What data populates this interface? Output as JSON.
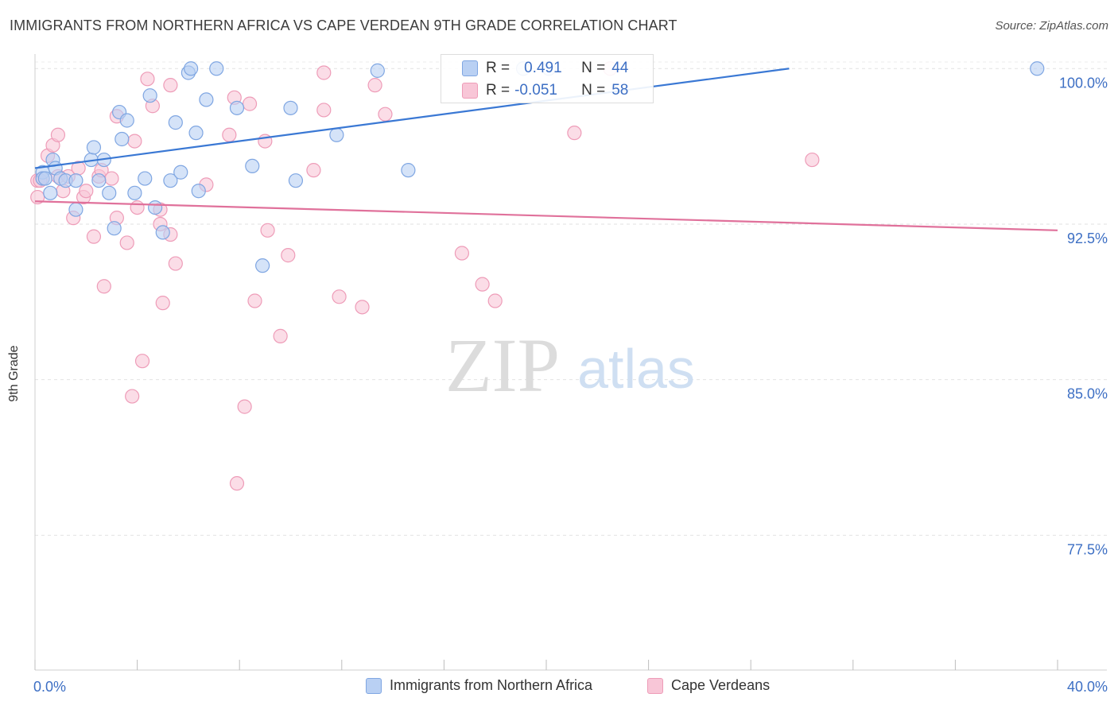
{
  "title": "IMMIGRANTS FROM NORTHERN AFRICA VS CAPE VERDEAN 9TH GRADE CORRELATION CHART",
  "source": "Source: ZipAtlas.com",
  "watermark": {
    "zip": "ZIP",
    "atlas": "atlas"
  },
  "colors": {
    "blue_fill": "#b9d0f3",
    "blue_stroke": "#7fa6e2",
    "blue_line": "#3a78d4",
    "pink_fill": "#f8c6d7",
    "pink_stroke": "#ee9cb8",
    "pink_line": "#e0719b",
    "tick_text": "#3d6fc4"
  },
  "legend": {
    "series1_label": "Immigrants from Northern Africa",
    "series2_label": "Cape Verdeans",
    "r_key": "R =",
    "n_key": "N =",
    "series1_r": "0.491",
    "series1_n": "44",
    "series2_r": "-0.051",
    "series2_n": "58"
  },
  "chart_data": {
    "type": "scatter",
    "title": "IMMIGRANTS FROM NORTHERN AFRICA VS CAPE VERDEAN 9TH GRADE CORRELATION CHART",
    "xlabel": "",
    "ylabel": "9th Grade",
    "xlim": [
      0,
      40
    ],
    "ylim": [
      71.0,
      100.7
    ],
    "x_tick_labels": [
      "0.0%",
      "40.0%"
    ],
    "y_ticks": [
      77.5,
      85.0,
      92.5,
      100.0
    ],
    "y_tick_labels": [
      "77.5%",
      "85.0%",
      "92.5%",
      "100.0%"
    ],
    "grid": true,
    "legend_position": "top-center",
    "series": [
      {
        "name": "Immigrants from Northern Africa",
        "color": "#7fa6e2",
        "r": 0.491,
        "n": 44,
        "trend": {
          "x": [
            0.0,
            29.5
          ],
          "y": [
            95.2,
            100.0
          ]
        },
        "points": [
          [
            0.3,
            95.0
          ],
          [
            0.3,
            94.7
          ],
          [
            0.4,
            94.7
          ],
          [
            0.6,
            94.0
          ],
          [
            0.7,
            95.6
          ],
          [
            0.8,
            95.2
          ],
          [
            1.0,
            94.7
          ],
          [
            1.2,
            94.6
          ],
          [
            1.6,
            93.2
          ],
          [
            1.6,
            94.6
          ],
          [
            2.2,
            95.6
          ],
          [
            2.3,
            96.2
          ],
          [
            2.5,
            94.6
          ],
          [
            2.7,
            95.6
          ],
          [
            2.9,
            94.0
          ],
          [
            3.1,
            92.3
          ],
          [
            3.3,
            97.9
          ],
          [
            3.4,
            96.6
          ],
          [
            3.6,
            97.5
          ],
          [
            3.9,
            94.0
          ],
          [
            4.3,
            94.7
          ],
          [
            4.5,
            98.7
          ],
          [
            4.7,
            93.3
          ],
          [
            5.0,
            92.1
          ],
          [
            5.3,
            94.6
          ],
          [
            5.5,
            97.4
          ],
          [
            5.7,
            95.0
          ],
          [
            6.0,
            99.8
          ],
          [
            6.1,
            100.0
          ],
          [
            6.3,
            96.9
          ],
          [
            6.4,
            94.1
          ],
          [
            6.7,
            98.5
          ],
          [
            7.1,
            100.0
          ],
          [
            7.9,
            98.1
          ],
          [
            8.5,
            95.3
          ],
          [
            8.9,
            90.5
          ],
          [
            10.0,
            98.1
          ],
          [
            10.2,
            94.6
          ],
          [
            11.8,
            96.8
          ],
          [
            13.4,
            99.9
          ],
          [
            14.6,
            95.1
          ],
          [
            19.1,
            100.0
          ],
          [
            20.1,
            100.0
          ],
          [
            39.2,
            100.0
          ]
        ]
      },
      {
        "name": "Cape Verdeans",
        "color": "#ee9cb8",
        "r": -0.051,
        "n": 58,
        "trend": {
          "x": [
            0.0,
            40.0
          ],
          "y": [
            93.6,
            92.2
          ]
        },
        "points": [
          [
            0.1,
            93.8
          ],
          [
            0.1,
            94.6
          ],
          [
            0.3,
            94.7
          ],
          [
            0.5,
            95.8
          ],
          [
            0.7,
            96.3
          ],
          [
            0.9,
            96.8
          ],
          [
            0.9,
            94.8
          ],
          [
            1.1,
            94.1
          ],
          [
            1.3,
            94.8
          ],
          [
            1.5,
            92.8
          ],
          [
            1.7,
            95.2
          ],
          [
            1.9,
            93.8
          ],
          [
            2.0,
            94.1
          ],
          [
            2.3,
            91.9
          ],
          [
            2.5,
            94.8
          ],
          [
            2.6,
            95.1
          ],
          [
            2.7,
            89.5
          ],
          [
            3.0,
            94.7
          ],
          [
            3.2,
            92.8
          ],
          [
            3.2,
            97.7
          ],
          [
            3.6,
            91.6
          ],
          [
            3.8,
            84.2
          ],
          [
            3.9,
            96.5
          ],
          [
            4.0,
            93.3
          ],
          [
            4.2,
            85.9
          ],
          [
            4.4,
            99.5
          ],
          [
            4.6,
            98.2
          ],
          [
            4.9,
            93.2
          ],
          [
            4.9,
            92.5
          ],
          [
            5.0,
            88.7
          ],
          [
            5.3,
            92.0
          ],
          [
            5.3,
            99.2
          ],
          [
            5.5,
            90.6
          ],
          [
            6.7,
            94.4
          ],
          [
            7.6,
            96.8
          ],
          [
            7.8,
            98.6
          ],
          [
            7.9,
            80.0
          ],
          [
            8.2,
            83.7
          ],
          [
            8.4,
            98.3
          ],
          [
            8.6,
            88.8
          ],
          [
            9.0,
            96.5
          ],
          [
            9.1,
            92.2
          ],
          [
            9.6,
            87.1
          ],
          [
            9.9,
            91.0
          ],
          [
            10.9,
            95.1
          ],
          [
            11.3,
            99.8
          ],
          [
            11.3,
            98.0
          ],
          [
            11.9,
            89.0
          ],
          [
            12.8,
            88.5
          ],
          [
            13.3,
            99.2
          ],
          [
            13.7,
            97.8
          ],
          [
            16.7,
            91.1
          ],
          [
            17.5,
            89.6
          ],
          [
            18.0,
            88.8
          ],
          [
            21.1,
            96.9
          ],
          [
            22.5,
            100.0
          ],
          [
            30.4,
            95.6
          ],
          [
            0.2,
            94.6
          ]
        ]
      }
    ]
  }
}
